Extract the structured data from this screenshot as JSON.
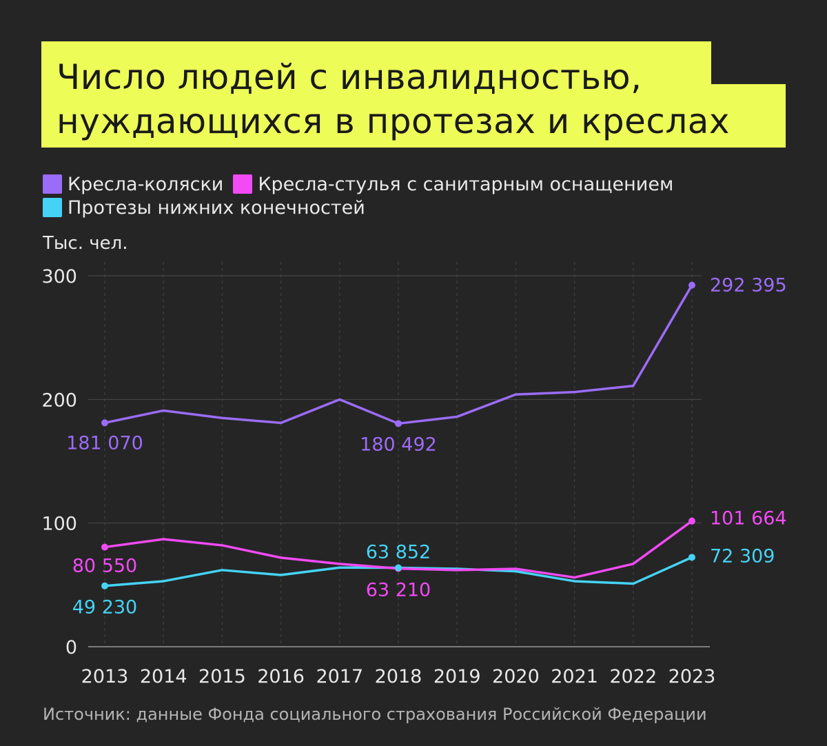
{
  "title": {
    "line1": "Число людей с инвалидностью,",
    "line2": "нуждающихся в протезах и креслах"
  },
  "unit_label": "Тыс. чел.",
  "source": "Источник: данные Фонда социального страхования Российской Федерации",
  "colors": {
    "background": "#252525",
    "title_bg": "#eefc58",
    "wheelchairs": "#9b6cf7",
    "sanitary_chairs": "#f24af5",
    "prostheses": "#45d3f5",
    "grid": "#4a4a4a",
    "axis": "#9a9a9a"
  },
  "chart_data": {
    "type": "line",
    "x": [
      "2013",
      "2014",
      "2015",
      "2016",
      "2017",
      "2018",
      "2019",
      "2020",
      "2021",
      "2022",
      "2023"
    ],
    "ylim": [
      0,
      300
    ],
    "yticks": [
      "0",
      "100",
      "200",
      "300"
    ],
    "ylabel": "Тыс. чел.",
    "grid": true,
    "legend_position": "top-left",
    "series": [
      {
        "name": "Кресла-коляски",
        "color": "#9b6cf7",
        "values": [
          181.07,
          191,
          185,
          181,
          200,
          180.492,
          186,
          204,
          206,
          211,
          292.395
        ]
      },
      {
        "name": "Кресла-стулья с санитарным оснащением",
        "color": "#f24af5",
        "values": [
          80.55,
          87,
          82,
          72,
          67,
          63.21,
          62,
          63,
          56,
          67,
          101.664
        ]
      },
      {
        "name": "Протезы нижних конечностей",
        "color": "#45d3f5",
        "values": [
          49.23,
          53,
          62,
          58,
          64,
          63.852,
          63,
          61,
          53,
          51,
          72.309
        ]
      }
    ],
    "annotations": [
      {
        "text": "181 070",
        "series": 0,
        "index": 0
      },
      {
        "text": "180 492",
        "series": 0,
        "index": 5
      },
      {
        "text": "292 395",
        "series": 0,
        "index": 10
      },
      {
        "text": "80 550",
        "series": 1,
        "index": 0
      },
      {
        "text": "63 210",
        "series": 1,
        "index": 5
      },
      {
        "text": "101 664",
        "series": 1,
        "index": 10
      },
      {
        "text": "49 230",
        "series": 2,
        "index": 0
      },
      {
        "text": "63 852",
        "series": 2,
        "index": 5
      },
      {
        "text": "72 309",
        "series": 2,
        "index": 10
      }
    ]
  }
}
